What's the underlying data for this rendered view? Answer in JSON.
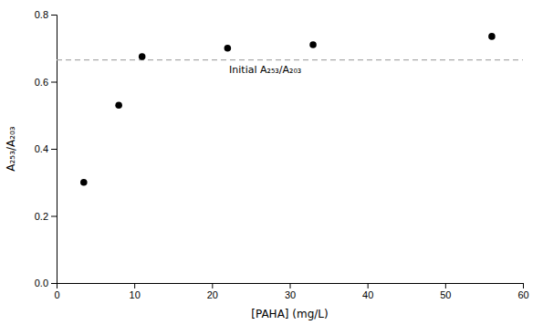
{
  "chart_data": {
    "type": "scatter",
    "x": [
      3.5,
      8,
      11,
      22,
      33,
      56
    ],
    "values": [
      0.3,
      0.53,
      0.675,
      0.7,
      0.71,
      0.735
    ],
    "color": "black",
    "marker": "circle",
    "xlabel": "[PAHA] (mg/L)",
    "ylabel": "A₂₅₃/A₂₀₃",
    "xlim": [
      0,
      60
    ],
    "ylim": [
      0.0,
      0.8
    ],
    "xticks": [
      0,
      10,
      20,
      30,
      40,
      50,
      60
    ],
    "yticks": [
      {
        "value": 0.0,
        "label": "0.0"
      },
      0.2,
      0.4,
      0.6,
      0.8
    ],
    "grid": false,
    "reference_line": {
      "y": 0.665,
      "label": "Initial A₂₅₃/A₂₀₃",
      "color": "#aaaaaa",
      "line_style": "dashed"
    }
  }
}
